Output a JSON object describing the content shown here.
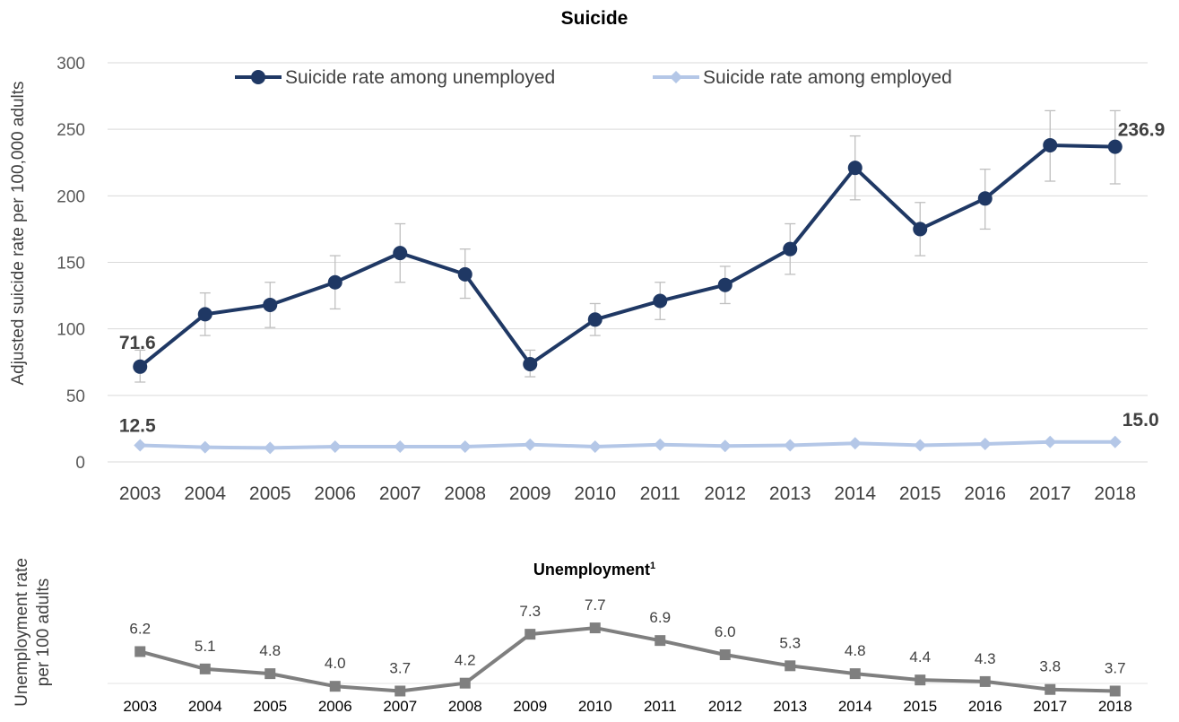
{
  "chart_data": [
    {
      "type": "line",
      "title": "Suicide",
      "xlabel": "",
      "ylabel": "Adjusted suicide rate per 100,000 adults",
      "ylim": [
        0,
        300
      ],
      "yticks": [
        0,
        50,
        100,
        150,
        200,
        250,
        300
      ],
      "grid": true,
      "legend_position": "top",
      "categories": [
        "2003",
        "2004",
        "2005",
        "2006",
        "2007",
        "2008",
        "2009",
        "2010",
        "2011",
        "2012",
        "2013",
        "2014",
        "2015",
        "2016",
        "2017",
        "2018"
      ],
      "series": [
        {
          "name": "Suicide rate among unemployed",
          "color": "#1f3864",
          "marker": "circle",
          "values": [
            71.6,
            111,
            118,
            135,
            157,
            141,
            73.5,
            107,
            121,
            133,
            160,
            221,
            175,
            198,
            238,
            236.9
          ],
          "error_low": [
            60,
            95,
            101,
            115,
            135,
            123,
            64,
            95,
            107,
            119,
            141,
            197,
            155,
            175,
            211,
            209
          ],
          "error_high": [
            84,
            127,
            135,
            155,
            179,
            160,
            84,
            119,
            135,
            147,
            179,
            245,
            195,
            220,
            264,
            264
          ]
        },
        {
          "name": "Suicide rate among employed",
          "color": "#b4c7e7",
          "marker": "diamond",
          "values": [
            12.5,
            11,
            10.5,
            11.5,
            11.5,
            11.5,
            13,
            11.5,
            13,
            12,
            12.5,
            14,
            12.5,
            13.5,
            15,
            15.0
          ]
        }
      ],
      "annotations": [
        "71.6",
        "236.9",
        "12.5",
        "15.0"
      ]
    },
    {
      "type": "line",
      "title": "Unemployment",
      "title_superscript": "1",
      "ylabel": "Unemployment rate per 100 adults",
      "ylabel_lines": [
        "Unemployment rate",
        "per 100 adults"
      ],
      "categories": [
        "2003",
        "2004",
        "2005",
        "2006",
        "2007",
        "2008",
        "2009",
        "2010",
        "2011",
        "2012",
        "2013",
        "2014",
        "2015",
        "2016",
        "2017",
        "2018"
      ],
      "series": [
        {
          "color": "#7f7f7f",
          "marker": "square",
          "values": [
            6.2,
            5.1,
            4.8,
            4.0,
            3.7,
            4.2,
            7.3,
            7.7,
            6.9,
            6.0,
            5.3,
            4.8,
            4.4,
            4.3,
            3.8,
            3.7
          ],
          "labels": [
            "6.2",
            "5.1",
            "4.8",
            "4.0",
            "3.7",
            "4.2",
            "7.3",
            "7.7",
            "6.9",
            "6.0",
            "5.3",
            "4.8",
            "4.4",
            "4.3",
            "3.8",
            "3.7"
          ]
        }
      ]
    }
  ]
}
